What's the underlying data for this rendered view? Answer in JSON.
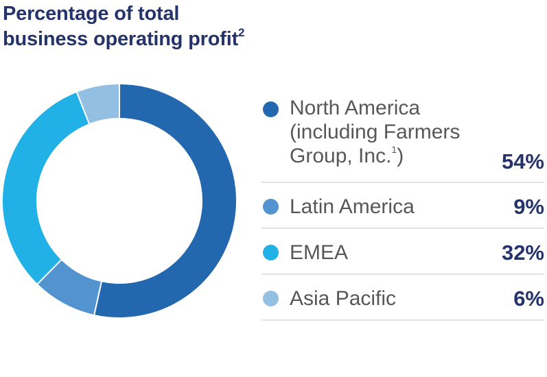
{
  "title": {
    "line1": "Percentage of total",
    "line2": "business operating profit",
    "footnote": "2"
  },
  "legend": [
    {
      "label_lines": [
        "North America",
        "(including Farmers",
        "Group, Inc."
      ],
      "footnote": "1",
      "label_suffix": ")",
      "value": "54%",
      "color": "#2368ae"
    },
    {
      "label": "Latin America",
      "value": "9%",
      "color": "#5393cf"
    },
    {
      "label": "EMEA",
      "value": "32%",
      "color": "#21b1e6"
    },
    {
      "label": "Asia Pacific",
      "value": "6%",
      "color": "#93bfe3"
    }
  ],
  "chart_data": {
    "type": "pie",
    "subtype": "donut",
    "title": "Percentage of total business operating profit²",
    "categories": [
      "North America (including Farmers Group, Inc.¹)",
      "Latin America",
      "EMEA",
      "Asia Pacific"
    ],
    "values": [
      54,
      9,
      32,
      6
    ],
    "unit": "%",
    "colors": [
      "#2368ae",
      "#5393cf",
      "#21b1e6",
      "#93bfe3"
    ],
    "start_angle": "12 o'clock, clockwise",
    "legend_position": "right"
  }
}
